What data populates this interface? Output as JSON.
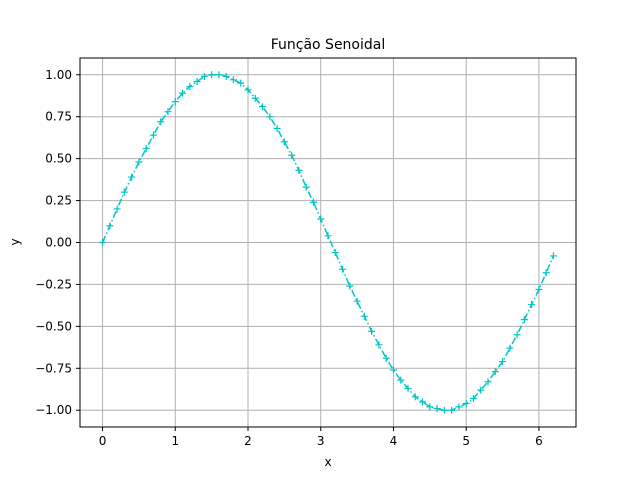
{
  "chart_data": {
    "type": "line",
    "title": "Função Senoidal",
    "xlabel": "x",
    "ylabel": "y",
    "xlim": [
      -0.31,
      6.51
    ],
    "ylim": [
      -1.1,
      1.1
    ],
    "xticks": [
      0,
      1,
      2,
      3,
      4,
      5,
      6
    ],
    "xtick_labels": [
      "0",
      "1",
      "2",
      "3",
      "4",
      "5",
      "6"
    ],
    "yticks": [
      -1.0,
      -0.75,
      -0.5,
      -0.25,
      0.0,
      0.25,
      0.5,
      0.75,
      1.0
    ],
    "ytick_labels": [
      "−1.00",
      "−0.75",
      "−0.50",
      "−0.25",
      "0.00",
      "0.25",
      "0.50",
      "0.75",
      "1.00"
    ],
    "grid": true,
    "series": [
      {
        "color": "#00c5c5",
        "line_style": "dashdot",
        "marker": "plus",
        "x": [
          0.0,
          0.1,
          0.2,
          0.3,
          0.4,
          0.5,
          0.6,
          0.7,
          0.8,
          0.9,
          1.0,
          1.1,
          1.2,
          1.3,
          1.4,
          1.5,
          1.6,
          1.7,
          1.8,
          1.9,
          2.0,
          2.1,
          2.2,
          2.3,
          2.4,
          2.5,
          2.6,
          2.7,
          2.8,
          2.9,
          3.0,
          3.1,
          3.2,
          3.3,
          3.4,
          3.5,
          3.6,
          3.7,
          3.8,
          3.9,
          4.0,
          4.1,
          4.2,
          4.3,
          4.4,
          4.5,
          4.6,
          4.7,
          4.8,
          4.9,
          5.0,
          5.1,
          5.2,
          5.3,
          5.4,
          5.5,
          5.6,
          5.7,
          5.8,
          5.9,
          6.0,
          6.1,
          6.2
        ],
        "y": [
          0.0,
          0.1,
          0.2,
          0.3,
          0.39,
          0.48,
          0.56,
          0.64,
          0.72,
          0.78,
          0.84,
          0.89,
          0.93,
          0.96,
          0.99,
          1.0,
          1.0,
          0.99,
          0.97,
          0.95,
          0.91,
          0.86,
          0.81,
          0.75,
          0.68,
          0.6,
          0.52,
          0.43,
          0.33,
          0.24,
          0.14,
          0.04,
          -0.06,
          -0.16,
          -0.26,
          -0.35,
          -0.44,
          -0.53,
          -0.61,
          -0.69,
          -0.76,
          -0.82,
          -0.87,
          -0.92,
          -0.95,
          -0.98,
          -0.99,
          -1.0,
          -1.0,
          -0.98,
          -0.96,
          -0.93,
          -0.88,
          -0.83,
          -0.77,
          -0.71,
          -0.63,
          -0.55,
          -0.46,
          -0.37,
          -0.28,
          -0.18,
          -0.08
        ]
      }
    ]
  }
}
